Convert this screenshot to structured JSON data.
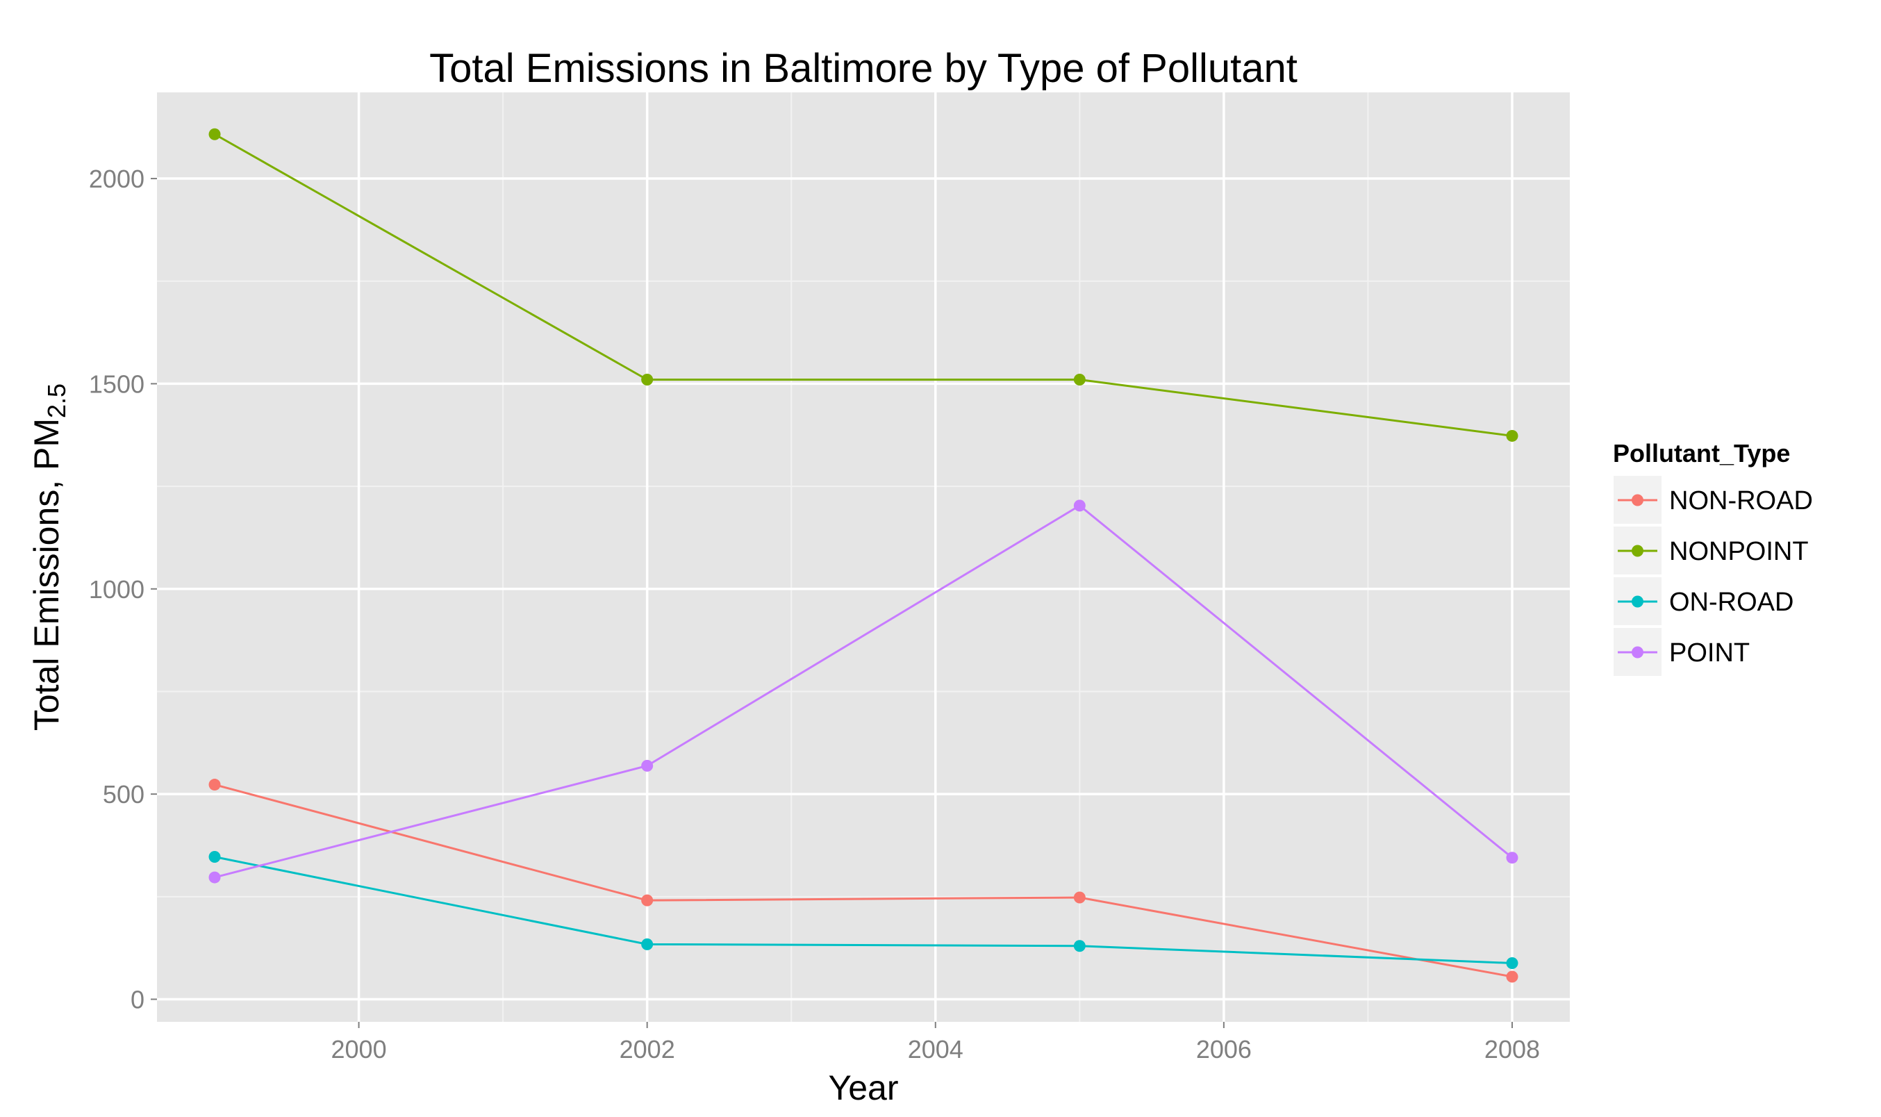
{
  "chart_data": {
    "type": "line",
    "title": "Total Emissions in Baltimore by Type of Pollutant",
    "xlabel": "Year",
    "ylabel": "Total Emissions, PM",
    "ylabel_subscript": "2.5",
    "x": [
      1999,
      2002,
      2005,
      2008
    ],
    "xlim": [
      1998.6,
      2008.4
    ],
    "ylim": [
      -55,
      2210
    ],
    "xticks": [
      2000,
      2002,
      2004,
      2006,
      2008
    ],
    "yticks": [
      0,
      500,
      1000,
      1500,
      2000
    ],
    "grid": true,
    "legend_title": "Pollutant_Type",
    "legend_position": "right",
    "series": [
      {
        "name": "NON-ROAD",
        "color": "#F8766D",
        "values": [
          523,
          241,
          248,
          55
        ]
      },
      {
        "name": "NONPOINT",
        "color": "#7CAE00",
        "values": [
          2108,
          1510,
          1510,
          1373
        ]
      },
      {
        "name": "ON-ROAD",
        "color": "#00BFC4",
        "values": [
          347,
          134,
          130,
          88
        ]
      },
      {
        "name": "POINT",
        "color": "#C77CFF",
        "values": [
          297,
          569,
          1203,
          345
        ]
      }
    ]
  }
}
